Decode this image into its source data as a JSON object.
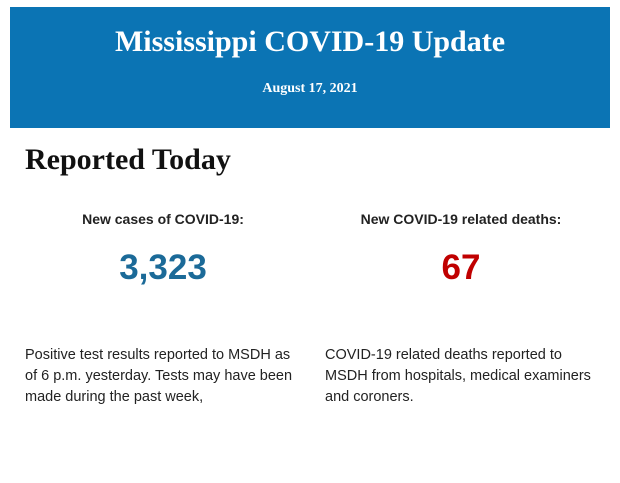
{
  "header": {
    "title": "Mississippi COVID-19 Update",
    "date": "August 17, 2021"
  },
  "section": {
    "heading": "Reported Today",
    "stats": [
      {
        "label": "New cases of COVID-19:",
        "value": "3,323",
        "description": "Positive test results reported to MSDH as of 6 p.m. yesterday. Tests may have been made during the past week,"
      },
      {
        "label": "New COVID-19 related deaths:",
        "value": "67",
        "description": "COVID-19 related deaths reported to MSDH from hospitals, medical examiners and coroners."
      }
    ]
  }
}
